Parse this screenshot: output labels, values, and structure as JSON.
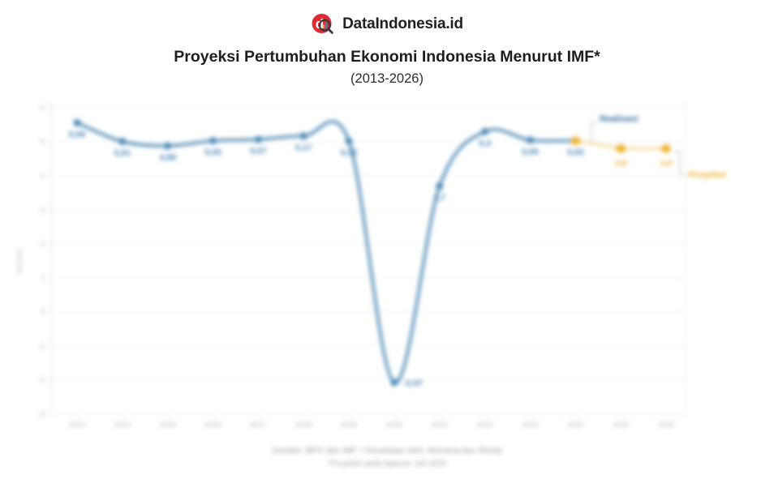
{
  "header": {
    "brand": "DataIndonesia.id"
  },
  "title": "Proyeksi Pertumbuhan Ekonomi Indonesia Menurut IMF*",
  "subtitle": "(2013-2026)",
  "chart_data": {
    "type": "line",
    "title": "Proyeksi Pertumbuhan Ekonomi Indonesia Menurut IMF* (2013-2026)",
    "xlabel": "",
    "ylabel": "Persen",
    "ylim": [
      -3,
      6
    ],
    "yticks": [
      6,
      5,
      4,
      3,
      2,
      1,
      0,
      -1,
      -2,
      -3
    ],
    "grid": true,
    "legend_position": "callouts",
    "categories": [
      "2013",
      "2014",
      "2015",
      "2016",
      "2017",
      "2018",
      "2019",
      "2020",
      "2021",
      "2022",
      "2023",
      "2024",
      "2025",
      "2026"
    ],
    "series": [
      {
        "name": "Realisasi",
        "color": "#4C89B5",
        "label_color": "#3D7FAE",
        "line_style": "solid",
        "years": [
          2013,
          2014,
          2015,
          2016,
          2017,
          2018,
          2019,
          2020,
          2021,
          2022,
          2023,
          2024
        ],
        "values": [
          5.56,
          5.01,
          4.88,
          5.03,
          5.07,
          5.17,
          5.02,
          -2.07,
          3.7,
          5.3,
          5.05,
          5.03
        ],
        "point_labels": [
          "5,56",
          "5,01",
          "4,88",
          "5,03",
          "5,07",
          "5,17",
          "5,02",
          "-2,07",
          "3,7",
          "5,3",
          "5,05",
          "5,03"
        ]
      },
      {
        "name": "Proyeksi",
        "color": "#F0B233",
        "label_color": "#F0B233",
        "line_style": "dotted",
        "years": [
          2024,
          2025,
          2026
        ],
        "values": [
          5.03,
          4.8,
          4.8
        ],
        "point_labels": [
          "",
          "4,8",
          "4,8"
        ]
      }
    ],
    "annotations": [
      {
        "text": "Realisasi",
        "color": "#2E6B9C"
      },
      {
        "text": "Proyeksi",
        "color": "#EFAE2C"
      }
    ]
  },
  "footer": {
    "source": "Sumber: BPS dan IMF • Visualisasi oleh: Monavia Ayu Rizaty",
    "note": "*Proyeksi pada laporan Juli 2025"
  }
}
